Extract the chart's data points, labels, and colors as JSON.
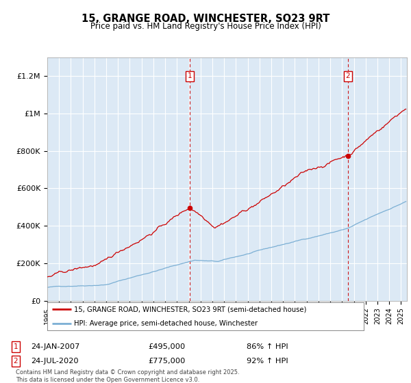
{
  "title": "15, GRANGE ROAD, WINCHESTER, SO23 9RT",
  "subtitle": "Price paid vs. HM Land Registry's House Price Index (HPI)",
  "ylim": [
    0,
    1300000
  ],
  "xlim_start": 1995.0,
  "xlim_end": 2025.5,
  "background_color": "#ffffff",
  "plot_bg_color": "#dce9f5",
  "grid_color": "#ffffff",
  "line1_color": "#cc0000",
  "line2_color": "#7bafd4",
  "marker1_date": "24-JAN-2007",
  "marker1_price": "£495,000",
  "marker1_hpi": "86% ↑ HPI",
  "marker2_date": "24-JUL-2020",
  "marker2_price": "£775,000",
  "marker2_hpi": "92% ↑ HPI",
  "legend1": "15, GRANGE ROAD, WINCHESTER, SO23 9RT (semi-detached house)",
  "legend2": "HPI: Average price, semi-detached house, Winchester",
  "footnote": "Contains HM Land Registry data © Crown copyright and database right 2025.\nThis data is licensed under the Open Government Licence v3.0.",
  "ytick_labels": [
    "£0",
    "£200K",
    "£400K",
    "£600K",
    "£800K",
    "£1M",
    "£1.2M"
  ],
  "ytick_values": [
    0,
    200000,
    400000,
    600000,
    800000,
    1000000,
    1200000
  ],
  "sale1_x": 2007.05,
  "sale1_y": 495000,
  "sale2_x": 2020.54,
  "sale2_y": 775000
}
